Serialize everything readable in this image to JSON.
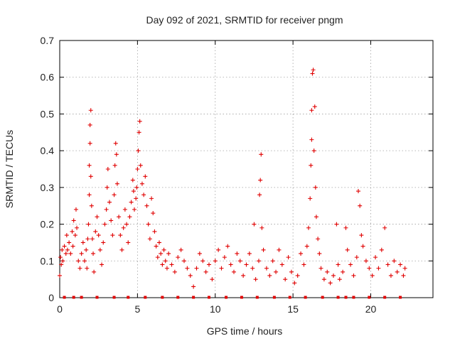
{
  "chart_data": {
    "type": "scatter",
    "title": "Day 092 of 2021, SRMTID for receiver pngm",
    "xlabel": "GPS time / hours",
    "ylabel": "SRMTID / TECUs",
    "xlim": [
      0,
      24
    ],
    "ylim": [
      0,
      0.7
    ],
    "x_ticks": [
      0,
      5,
      10,
      15,
      20
    ],
    "x_tick_labels": [
      "0",
      "5",
      "10",
      "15",
      "20"
    ],
    "y_ticks": [
      0,
      0.1,
      0.2,
      0.3,
      0.4,
      0.5,
      0.6,
      0.7
    ],
    "y_tick_labels": [
      "0",
      "0.1",
      "0.2",
      "0.3",
      "0.4",
      "0.5",
      "0.6",
      "0.7"
    ],
    "grid": true,
    "marker": "plus",
    "series_color": "#e00000",
    "baseline_marks_x": [
      0.3,
      0.9,
      1.4,
      2.4,
      3.5,
      4.4,
      5.5,
      6.6,
      7.6,
      8.6,
      9.6,
      10.7,
      11.7,
      12.7,
      13.8,
      14.8,
      15.8,
      16.9,
      17.9,
      18.4,
      18.9,
      19.9,
      20.9,
      21.9
    ],
    "points": [
      [
        0.0,
        0.06
      ],
      [
        0.05,
        0.11
      ],
      [
        0.1,
        0.09
      ],
      [
        0.15,
        0.13
      ],
      [
        0.2,
        0.1
      ],
      [
        0.3,
        0.14
      ],
      [
        0.4,
        0.12
      ],
      [
        0.45,
        0.17
      ],
      [
        0.5,
        0.13
      ],
      [
        0.6,
        0.15
      ],
      [
        0.7,
        0.12
      ],
      [
        0.8,
        0.18
      ],
      [
        0.85,
        0.14
      ],
      [
        0.9,
        0.21
      ],
      [
        1.0,
        0.17
      ],
      [
        1.05,
        0.24
      ],
      [
        1.1,
        0.19
      ],
      [
        1.2,
        0.1
      ],
      [
        1.3,
        0.08
      ],
      [
        1.4,
        0.12
      ],
      [
        1.5,
        0.15
      ],
      [
        1.6,
        0.1
      ],
      [
        1.7,
        0.13
      ],
      [
        1.75,
        0.08
      ],
      [
        1.8,
        0.16
      ],
      [
        1.85,
        0.2
      ],
      [
        1.9,
        0.28
      ],
      [
        1.9,
        0.36
      ],
      [
        1.95,
        0.42
      ],
      [
        1.95,
        0.47
      ],
      [
        2.0,
        0.51
      ],
      [
        2.0,
        0.33
      ],
      [
        2.05,
        0.25
      ],
      [
        2.1,
        0.16
      ],
      [
        2.15,
        0.12
      ],
      [
        2.2,
        0.07
      ],
      [
        2.3,
        0.18
      ],
      [
        2.4,
        0.22
      ],
      [
        2.5,
        0.17
      ],
      [
        2.6,
        0.13
      ],
      [
        2.7,
        0.09
      ],
      [
        2.8,
        0.15
      ],
      [
        2.9,
        0.2
      ],
      [
        3.0,
        0.24
      ],
      [
        3.05,
        0.3
      ],
      [
        3.1,
        0.35
      ],
      [
        3.2,
        0.26
      ],
      [
        3.3,
        0.21
      ],
      [
        3.4,
        0.17
      ],
      [
        3.5,
        0.28
      ],
      [
        3.55,
        0.36
      ],
      [
        3.6,
        0.42
      ],
      [
        3.65,
        0.39
      ],
      [
        3.7,
        0.31
      ],
      [
        3.8,
        0.22
      ],
      [
        3.9,
        0.17
      ],
      [
        4.0,
        0.13
      ],
      [
        4.1,
        0.19
      ],
      [
        4.2,
        0.24
      ],
      [
        4.3,
        0.2
      ],
      [
        4.4,
        0.15
      ],
      [
        4.5,
        0.22
      ],
      [
        4.6,
        0.26
      ],
      [
        4.7,
        0.32
      ],
      [
        4.75,
        0.29
      ],
      [
        4.8,
        0.24
      ],
      [
        4.9,
        0.27
      ],
      [
        4.95,
        0.3
      ],
      [
        5.0,
        0.35
      ],
      [
        5.05,
        0.4
      ],
      [
        5.1,
        0.45
      ],
      [
        5.15,
        0.48
      ],
      [
        5.2,
        0.36
      ],
      [
        5.3,
        0.31
      ],
      [
        5.4,
        0.28
      ],
      [
        5.5,
        0.33
      ],
      [
        5.6,
        0.25
      ],
      [
        5.7,
        0.2
      ],
      [
        5.8,
        0.16
      ],
      [
        5.9,
        0.27
      ],
      [
        6.0,
        0.23
      ],
      [
        6.1,
        0.18
      ],
      [
        6.2,
        0.14
      ],
      [
        6.3,
        0.11
      ],
      [
        6.4,
        0.15
      ],
      [
        6.5,
        0.12
      ],
      [
        6.6,
        0.09
      ],
      [
        6.7,
        0.13
      ],
      [
        6.8,
        0.1
      ],
      [
        6.9,
        0.08
      ],
      [
        7.0,
        0.12
      ],
      [
        7.2,
        0.09
      ],
      [
        7.4,
        0.07
      ],
      [
        7.6,
        0.11
      ],
      [
        7.8,
        0.13
      ],
      [
        8.0,
        0.1
      ],
      [
        8.2,
        0.08
      ],
      [
        8.4,
        0.06
      ],
      [
        8.6,
        0.03
      ],
      [
        8.8,
        0.08
      ],
      [
        9.0,
        0.12
      ],
      [
        9.2,
        0.1
      ],
      [
        9.4,
        0.07
      ],
      [
        9.6,
        0.09
      ],
      [
        9.8,
        0.05
      ],
      [
        10.0,
        0.1
      ],
      [
        10.2,
        0.13
      ],
      [
        10.4,
        0.08
      ],
      [
        10.6,
        0.11
      ],
      [
        10.8,
        0.14
      ],
      [
        11.0,
        0.09
      ],
      [
        11.2,
        0.07
      ],
      [
        11.4,
        0.12
      ],
      [
        11.6,
        0.1
      ],
      [
        11.8,
        0.06
      ],
      [
        12.0,
        0.09
      ],
      [
        12.2,
        0.12
      ],
      [
        12.4,
        0.08
      ],
      [
        12.5,
        0.2
      ],
      [
        12.6,
        0.05
      ],
      [
        12.8,
        0.1
      ],
      [
        12.85,
        0.28
      ],
      [
        12.9,
        0.32
      ],
      [
        12.95,
        0.39
      ],
      [
        13.0,
        0.19
      ],
      [
        13.1,
        0.13
      ],
      [
        13.3,
        0.08
      ],
      [
        13.5,
        0.06
      ],
      [
        13.7,
        0.1
      ],
      [
        13.9,
        0.07
      ],
      [
        14.1,
        0.13
      ],
      [
        14.3,
        0.09
      ],
      [
        14.5,
        0.05
      ],
      [
        14.7,
        0.11
      ],
      [
        14.9,
        0.07
      ],
      [
        15.1,
        0.04
      ],
      [
        15.3,
        0.06
      ],
      [
        15.5,
        0.12
      ],
      [
        15.7,
        0.09
      ],
      [
        15.9,
        0.14
      ],
      [
        16.0,
        0.19
      ],
      [
        16.1,
        0.27
      ],
      [
        16.15,
        0.36
      ],
      [
        16.2,
        0.43
      ],
      [
        16.2,
        0.51
      ],
      [
        16.25,
        0.61
      ],
      [
        16.3,
        0.62
      ],
      [
        16.35,
        0.4
      ],
      [
        16.4,
        0.52
      ],
      [
        16.45,
        0.3
      ],
      [
        16.5,
        0.22
      ],
      [
        16.6,
        0.16
      ],
      [
        16.7,
        0.12
      ],
      [
        16.8,
        0.08
      ],
      [
        17.0,
        0.05
      ],
      [
        17.2,
        0.07
      ],
      [
        17.4,
        0.04
      ],
      [
        17.6,
        0.06
      ],
      [
        17.8,
        0.2
      ],
      [
        17.9,
        0.09
      ],
      [
        18.0,
        0.05
      ],
      [
        18.2,
        0.07
      ],
      [
        18.4,
        0.19
      ],
      [
        18.5,
        0.13
      ],
      [
        18.7,
        0.09
      ],
      [
        18.9,
        0.06
      ],
      [
        19.1,
        0.11
      ],
      [
        19.2,
        0.29
      ],
      [
        19.3,
        0.25
      ],
      [
        19.4,
        0.17
      ],
      [
        19.5,
        0.14
      ],
      [
        19.7,
        0.1
      ],
      [
        19.9,
        0.08
      ],
      [
        20.1,
        0.06
      ],
      [
        20.3,
        0.11
      ],
      [
        20.5,
        0.08
      ],
      [
        20.7,
        0.13
      ],
      [
        20.9,
        0.19
      ],
      [
        21.1,
        0.09
      ],
      [
        21.3,
        0.06
      ],
      [
        21.5,
        0.1
      ],
      [
        21.7,
        0.07
      ],
      [
        21.9,
        0.09
      ],
      [
        22.1,
        0.06
      ],
      [
        22.2,
        0.08
      ]
    ]
  }
}
